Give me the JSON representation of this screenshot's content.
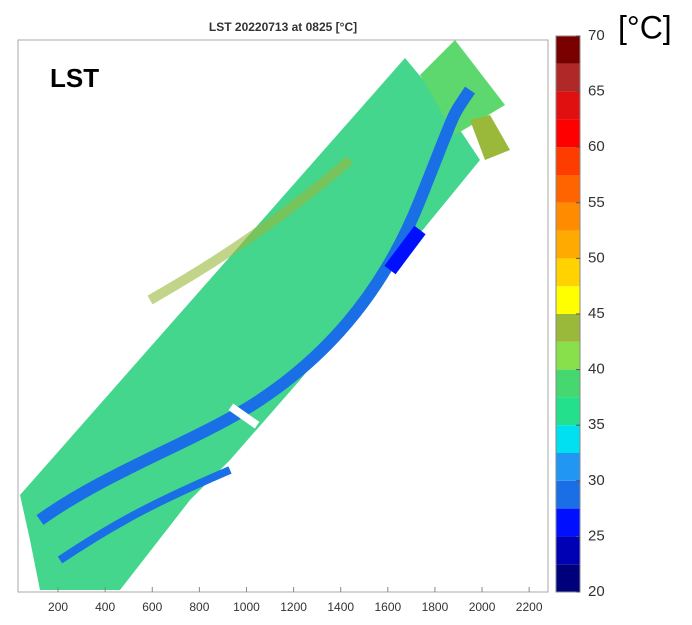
{
  "chart_data": {
    "type": "heatmap",
    "title": "LST 20220713 at 0825 [°C]",
    "annotation": "LST",
    "unit_label": "[°C]",
    "xlim": [
      30,
      2280
    ],
    "xticks": [
      200,
      400,
      600,
      800,
      1000,
      1200,
      1400,
      1600,
      1800,
      2000,
      2200
    ],
    "colorbar": {
      "lim": [
        20,
        70
      ],
      "ticks": [
        20,
        25,
        30,
        35,
        40,
        45,
        50,
        55,
        60,
        65,
        70
      ],
      "bins": [
        20,
        22.5,
        25,
        27.5,
        30,
        32.5,
        35,
        37.5,
        40,
        42.5,
        45,
        47.5,
        50,
        52.5,
        55,
        57.5,
        60,
        62.5,
        65,
        67.5,
        70
      ],
      "colors": [
        "#00007a",
        "#0000b4",
        "#0010ff",
        "#1a6ee6",
        "#2196f3",
        "#00e0f0",
        "#22e08c",
        "#46d870",
        "#88e04a",
        "#9ab83a",
        "#ffff00",
        "#ffd200",
        "#ffaa00",
        "#ff8c00",
        "#ff6400",
        "#ff3c00",
        "#ff0000",
        "#e01010",
        "#b02828",
        "#7a0000"
      ]
    }
  }
}
